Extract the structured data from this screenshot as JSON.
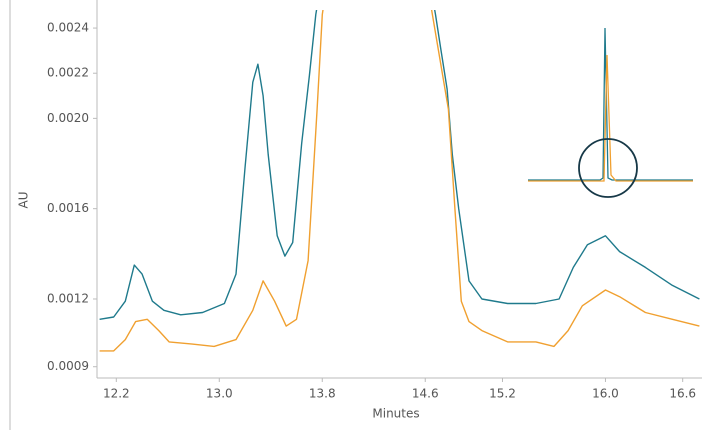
{
  "chart_data": {
    "type": "line",
    "x_label": "Minutes",
    "y_label": "AU",
    "xlim": [
      12.05,
      16.75
    ],
    "ylim": [
      0.00085,
      0.00248
    ],
    "xticks": [
      {
        "value": 12.2,
        "label": "12.2"
      },
      {
        "value": 13.0,
        "label": "13.0"
      },
      {
        "value": 13.8,
        "label": "13.8"
      },
      {
        "value": 14.6,
        "label": "14.6"
      },
      {
        "value": 15.2,
        "label": "15.2"
      },
      {
        "value": 16.0,
        "label": "16.0"
      },
      {
        "value": 16.6,
        "label": "16.6"
      }
    ],
    "yticks": [
      {
        "value": 0.0009,
        "label": "0.0009"
      },
      {
        "value": 0.0012,
        "label": "0.0012"
      },
      {
        "value": 0.0016,
        "label": "0.0016"
      },
      {
        "value": 0.002,
        "label": "0.0020"
      },
      {
        "value": 0.0022,
        "label": "0.0022"
      },
      {
        "value": 0.0024,
        "label": "0.0024"
      }
    ],
    "series": [
      {
        "color": "#1f7a8c",
        "x": [
          12.07,
          12.18,
          12.27,
          12.34,
          12.4,
          12.48,
          12.57,
          12.7,
          12.87,
          13.04,
          13.13,
          13.2,
          13.26,
          13.3,
          13.34,
          13.38,
          13.45,
          13.51,
          13.57,
          13.64,
          13.7,
          13.75,
          14.2,
          14.68,
          14.72,
          14.77,
          14.81,
          14.86,
          14.94,
          15.04,
          15.24,
          15.46,
          15.64,
          15.75,
          15.86,
          16.0,
          16.11,
          16.31,
          16.52,
          16.73
        ],
        "values": [
          0.00111,
          0.00112,
          0.00119,
          0.00135,
          0.00131,
          0.00119,
          0.00115,
          0.00113,
          0.00114,
          0.00118,
          0.00131,
          0.00178,
          0.00216,
          0.00224,
          0.0021,
          0.00184,
          0.00148,
          0.00139,
          0.00145,
          0.00189,
          0.00219,
          0.00246,
          0.004,
          0.00246,
          0.00231,
          0.00213,
          0.00184,
          0.0016,
          0.00128,
          0.0012,
          0.00118,
          0.00118,
          0.0012,
          0.00134,
          0.00144,
          0.00148,
          0.00141,
          0.00134,
          0.00126,
          0.0012
        ]
      },
      {
        "color": "#f0a030",
        "x": [
          12.07,
          12.18,
          12.27,
          12.35,
          12.44,
          12.53,
          12.61,
          12.79,
          12.96,
          13.13,
          13.26,
          13.34,
          13.43,
          13.52,
          13.6,
          13.69,
          13.76,
          13.8,
          14.2,
          14.7,
          14.78,
          14.83,
          14.88,
          14.94,
          15.04,
          15.24,
          15.46,
          15.6,
          15.71,
          15.82,
          16.0,
          16.11,
          16.31,
          16.52,
          16.73
        ],
        "values": [
          0.00097,
          0.00097,
          0.00102,
          0.0011,
          0.00111,
          0.00106,
          0.00101,
          0.001,
          0.00099,
          0.00102,
          0.00115,
          0.00128,
          0.00119,
          0.00108,
          0.00111,
          0.00137,
          0.00204,
          0.00246,
          0.004,
          0.00231,
          0.00204,
          0.0016,
          0.00119,
          0.0011,
          0.00106,
          0.00101,
          0.00101,
          0.00099,
          0.00106,
          0.00117,
          0.00124,
          0.00121,
          0.00114,
          0.00111,
          0.00108
        ]
      }
    ]
  }
}
